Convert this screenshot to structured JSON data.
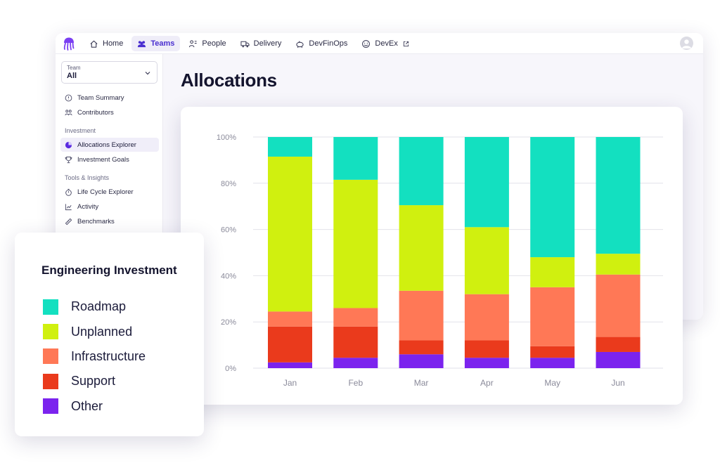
{
  "nav": {
    "items": [
      {
        "label": "Home",
        "icon": "home-icon",
        "active": false
      },
      {
        "label": "Teams",
        "icon": "teams-icon",
        "active": true
      },
      {
        "label": "People",
        "icon": "people-icon",
        "active": false
      },
      {
        "label": "Delivery",
        "icon": "truck-icon",
        "active": false
      },
      {
        "label": "DevFinOps",
        "icon": "piggy-bank-icon",
        "active": false
      },
      {
        "label": "DevEx",
        "icon": "smiley-icon",
        "active": false
      }
    ]
  },
  "team_select": {
    "label": "Team",
    "value": "All"
  },
  "sidebar": {
    "items_top": [
      {
        "label": "Team Summary",
        "icon": "summary-icon"
      },
      {
        "label": "Contributors",
        "icon": "contributors-icon"
      }
    ],
    "section_investment": "Investment",
    "items_investment": [
      {
        "label": "Allocations Explorer",
        "icon": "pie-chart-icon",
        "active": true
      },
      {
        "label": "Investment Goals",
        "icon": "trophy-icon",
        "active": false
      }
    ],
    "section_tools": "Tools & Insights",
    "items_tools": [
      {
        "label": "Life Cycle Explorer",
        "icon": "stopwatch-icon"
      },
      {
        "label": "Activity",
        "icon": "activity-chart-icon"
      },
      {
        "label": "Benchmarks",
        "icon": "ruler-icon"
      }
    ]
  },
  "page_title": "Allocations",
  "legend": {
    "title": "Engineering Investment"
  },
  "colors": {
    "Roadmap": "#13e0c0",
    "Unplanned": "#d0f00f",
    "Infrastructure": "#ff7856",
    "Support": "#ea3a1c",
    "Other": "#7b23ee",
    "accent": "#4a2fd0"
  },
  "chart_data": {
    "type": "bar",
    "stacked": true,
    "categories": [
      "Jan",
      "Feb",
      "Mar",
      "Apr",
      "May",
      "Jun"
    ],
    "series": [
      {
        "name": "Other",
        "values": [
          2.5,
          4.5,
          6,
          4.5,
          4.5,
          7
        ]
      },
      {
        "name": "Support",
        "values": [
          15.5,
          13.5,
          6,
          7.5,
          5,
          6.5
        ]
      },
      {
        "name": "Infrastructure",
        "values": [
          6.5,
          8,
          21.5,
          20,
          25.5,
          27
        ]
      },
      {
        "name": "Unplanned",
        "values": [
          67,
          55.5,
          37,
          29,
          13,
          9
        ]
      },
      {
        "name": "Roadmap",
        "values": [
          8.5,
          18.5,
          29.5,
          39,
          52,
          50.5
        ]
      }
    ],
    "yticks": [
      "0%",
      "20%",
      "40%",
      "60%",
      "80%",
      "100%"
    ],
    "ylim": [
      0,
      100
    ],
    "grid": true,
    "legend_placement": "separate-card-left"
  }
}
